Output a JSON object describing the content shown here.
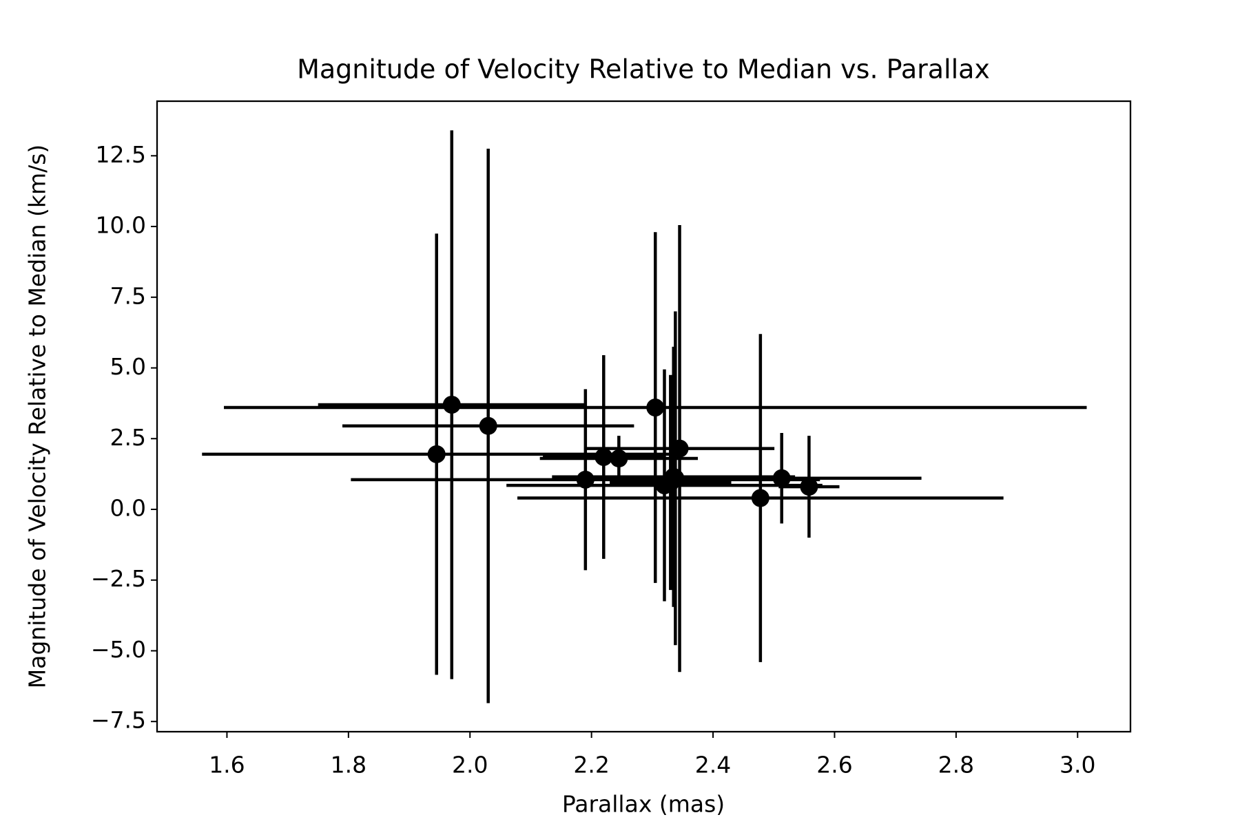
{
  "chart_data": {
    "type": "errorbar",
    "title": "Magnitude of Velocity Relative to Median vs. Parallax",
    "x_label": "Parallax (mas)",
    "y_label": "Magnitude of Velocity Relative to Median (km/s)",
    "color": "#000000",
    "x": [
      1.945,
      1.97,
      2.03,
      2.19,
      2.22,
      2.245,
      2.305,
      2.32,
      2.33,
      2.335,
      2.338,
      2.345,
      2.478,
      2.513,
      2.558
    ],
    "values": [
      1.95,
      3.7,
      2.95,
      1.05,
      1.85,
      1.8,
      3.6,
      0.85,
      0.95,
      1.15,
      1.1,
      2.15,
      0.4,
      1.1,
      0.8
    ],
    "xerr": [
      0.386,
      0.22,
      0.24,
      0.386,
      0.1,
      0.13,
      0.71,
      0.26,
      0.1,
      0.2,
      0.1,
      0.156,
      0.4,
      0.23,
      0.05
    ],
    "yerr": [
      7.8,
      9.7,
      9.8,
      3.2,
      3.6,
      0.8,
      6.2,
      4.1,
      3.8,
      4.6,
      5.9,
      7.9,
      5.8,
      1.6,
      1.8
    ],
    "xlim": [
      1.485,
      3.087
    ],
    "ylim": [
      -7.86,
      14.43
    ],
    "xticks": [
      1.6,
      1.8,
      {
        "value": 2,
        "label": "2.0"
      },
      2.2,
      2.4,
      2.6,
      2.8,
      {
        "value": 3,
        "label": "3.0"
      }
    ],
    "yticks": [
      {
        "value": -7.5,
        "label": "−7.5"
      },
      {
        "value": -5,
        "label": "−5.0"
      },
      {
        "value": -2.5,
        "label": "−2.5"
      },
      {
        "value": 0,
        "label": "0.0"
      },
      2.5,
      {
        "value": 5,
        "label": "5.0"
      },
      7.5,
      {
        "value": 10,
        "label": "10.0"
      },
      12.5
    ],
    "grid": false
  }
}
